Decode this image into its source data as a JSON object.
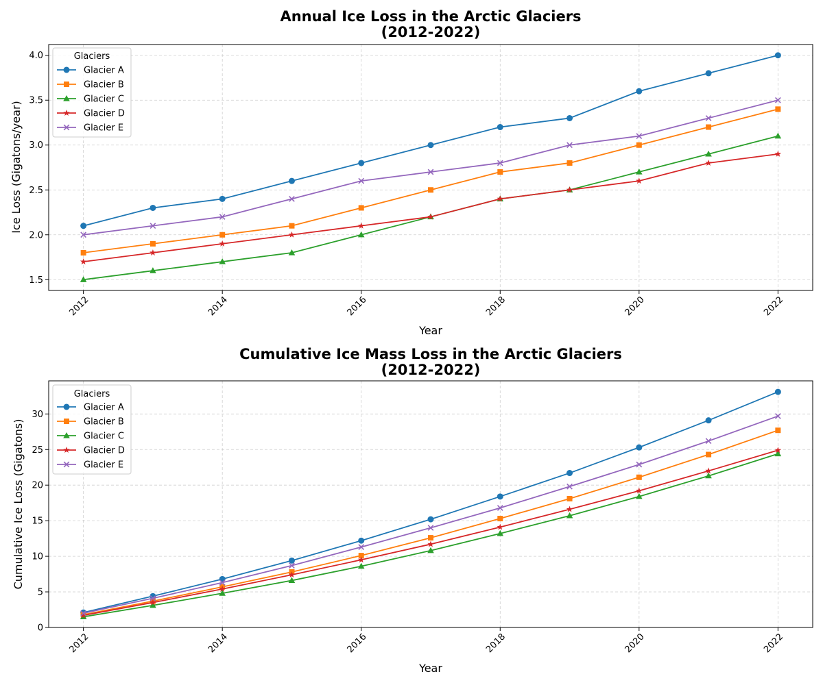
{
  "chart_data": [
    {
      "type": "line",
      "title": "Annual Ice Loss in the Arctic Glaciers",
      "subtitle": "(2012-2022)",
      "xlabel": "Year",
      "ylabel": "Ice Loss (Gigatons/year)",
      "x": [
        2012,
        2013,
        2014,
        2015,
        2016,
        2017,
        2018,
        2019,
        2020,
        2021,
        2022
      ],
      "x_ticks": [
        2012,
        2014,
        2016,
        2018,
        2020,
        2022
      ],
      "y_ticks": [
        1.5,
        2.0,
        2.5,
        3.0,
        3.5,
        4.0
      ],
      "y_tick_labels": [
        "1.5",
        "2.0",
        "2.5",
        "3.0",
        "3.5",
        "4.0"
      ],
      "xlim": [
        2011.5,
        2022.5
      ],
      "ylim": [
        1.38,
        4.12
      ],
      "grid": true,
      "legend": {
        "title": "Glaciers",
        "placement": "upper-left"
      },
      "series": [
        {
          "name": "Glacier A",
          "color": "#1f77b4",
          "marker": "circle",
          "values": [
            2.1,
            2.3,
            2.4,
            2.6,
            2.8,
            3.0,
            3.2,
            3.3,
            3.6,
            3.8,
            4.0
          ]
        },
        {
          "name": "Glacier B",
          "color": "#ff7f0e",
          "marker": "square",
          "values": [
            1.8,
            1.9,
            2.0,
            2.1,
            2.3,
            2.5,
            2.7,
            2.8,
            3.0,
            3.2,
            3.4
          ]
        },
        {
          "name": "Glacier C",
          "color": "#2ca02c",
          "marker": "triangle",
          "values": [
            1.5,
            1.6,
            1.7,
            1.8,
            2.0,
            2.2,
            2.4,
            2.5,
            2.7,
            2.9,
            3.1
          ]
        },
        {
          "name": "Glacier D",
          "color": "#d62728",
          "marker": "star",
          "values": [
            1.7,
            1.8,
            1.9,
            2.0,
            2.1,
            2.2,
            2.4,
            2.5,
            2.6,
            2.8,
            2.9
          ]
        },
        {
          "name": "Glacier E",
          "color": "#9467bd",
          "marker": "x",
          "values": [
            2.0,
            2.1,
            2.2,
            2.4,
            2.6,
            2.7,
            2.8,
            3.0,
            3.1,
            3.3,
            3.5
          ]
        }
      ]
    },
    {
      "type": "line",
      "title": "Cumulative Ice Mass Loss in the Arctic Glaciers",
      "subtitle": "(2012-2022)",
      "xlabel": "Year",
      "ylabel": "Cumulative Ice Loss (Gigatons)",
      "x": [
        2012,
        2013,
        2014,
        2015,
        2016,
        2017,
        2018,
        2019,
        2020,
        2021,
        2022
      ],
      "x_ticks": [
        2012,
        2014,
        2016,
        2018,
        2020,
        2022
      ],
      "y_ticks": [
        0,
        5,
        10,
        15,
        20,
        25,
        30
      ],
      "y_tick_labels": [
        "0",
        "5",
        "10",
        "15",
        "20",
        "25",
        "30"
      ],
      "xlim": [
        2011.5,
        2022.5
      ],
      "ylim": [
        0,
        34.65
      ],
      "grid": true,
      "legend": {
        "title": "Glaciers",
        "placement": "upper-left"
      },
      "series": [
        {
          "name": "Glacier A",
          "color": "#1f77b4",
          "marker": "circle",
          "values": [
            2.1,
            4.4,
            6.8,
            9.4,
            12.2,
            15.2,
            18.4,
            21.7,
            25.3,
            29.1,
            33.1
          ]
        },
        {
          "name": "Glacier B",
          "color": "#ff7f0e",
          "marker": "square",
          "values": [
            1.8,
            3.7,
            5.7,
            7.8,
            10.1,
            12.6,
            15.3,
            18.1,
            21.1,
            24.3,
            27.7
          ]
        },
        {
          "name": "Glacier C",
          "color": "#2ca02c",
          "marker": "triangle",
          "values": [
            1.5,
            3.1,
            4.8,
            6.6,
            8.6,
            10.8,
            13.2,
            15.7,
            18.4,
            21.3,
            24.4
          ]
        },
        {
          "name": "Glacier D",
          "color": "#d62728",
          "marker": "star",
          "values": [
            1.7,
            3.5,
            5.4,
            7.4,
            9.5,
            11.7,
            14.1,
            16.6,
            19.2,
            22.0,
            24.9
          ]
        },
        {
          "name": "Glacier E",
          "color": "#9467bd",
          "marker": "x",
          "values": [
            2.0,
            4.1,
            6.3,
            8.7,
            11.3,
            14.0,
            16.8,
            19.8,
            22.9,
            26.2,
            29.7
          ]
        }
      ]
    }
  ]
}
